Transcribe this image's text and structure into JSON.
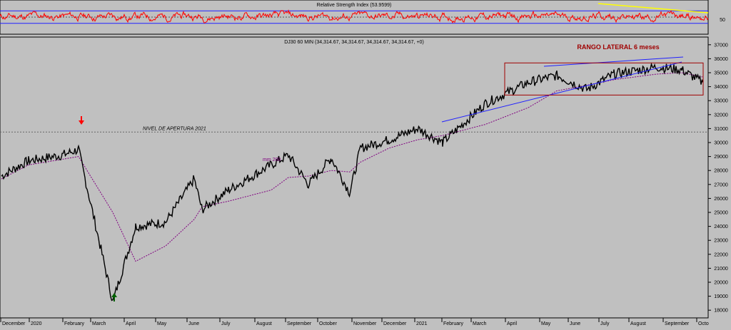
{
  "chart_data": [
    {
      "type": "line",
      "title": "Relative Strength Index (53.9599)",
      "ylabel_ticks": [
        "50"
      ],
      "reference_levels": [
        30,
        50,
        70
      ],
      "series": [
        {
          "name": "",
          "color": "#ff0000",
          "values_range": [
            20,
            80
          ]
        }
      ]
    },
    {
      "type": "line",
      "title": "DJ30 60 MIN (34,314.67, 34,314.67, 34,314.67, 34,314.67, +0)",
      "ylim": [
        17500,
        37500
      ],
      "y_ticks": [
        18000,
        19000,
        20000,
        21000,
        22000,
        23000,
        24000,
        25000,
        26000,
        27000,
        28000,
        29000,
        30000,
        31000,
        32000,
        33000,
        34000,
        35000,
        36000,
        37000
      ],
      "x_ticks": [
        "December",
        "2020",
        "February",
        "March",
        "April",
        "May",
        "June",
        "July",
        "August",
        "September",
        "October",
        "November",
        "December",
        "2021",
        "February",
        "March",
        "April",
        "May",
        "June",
        "July",
        "August",
        "September",
        "Octo"
      ],
      "series": [
        {
          "name": "",
          "color": "#000000",
          "x": [
            "Dec 2019",
            "Jan 2020",
            "Feb 2020 early",
            "Feb 2020 peak",
            "Mar 2020 low",
            "Apr 2020",
            "May 2020",
            "Jun 2020 high",
            "Jun 2020 dip",
            "Jul 2020",
            "Aug 2020",
            "Sep 2020 high",
            "Sep 2020 dip",
            "Oct 2020 high",
            "Oct 2020 low",
            "Nov 2020",
            "Dec 2020",
            "Jan 2021",
            "Feb 2021 dip",
            "Mar 2021",
            "Apr 2021",
            "May 2021",
            "Jun 2021 dip",
            "Jul 2021",
            "Aug 2021",
            "Sep 2021",
            "Oct 2021"
          ],
          "values": [
            27600,
            28700,
            29100,
            29500,
            18600,
            24000,
            24300,
            27400,
            25200,
            26600,
            28400,
            29100,
            27000,
            28900,
            26400,
            29600,
            30200,
            31000,
            30000,
            32800,
            34300,
            34800,
            33800,
            34900,
            35400,
            35200,
            34314
          ]
        },
        {
          "name": "mm 200",
          "color": "#800080",
          "values": [
            27400,
            28400,
            28800,
            29000,
            25000,
            21500,
            22600,
            24500,
            25400,
            25800,
            26600,
            27500,
            27600,
            28000,
            27900,
            28600,
            29600,
            30200,
            30500,
            31300,
            32500,
            33700,
            34100,
            34500,
            34900,
            35000,
            34700
          ]
        }
      ],
      "annotations": [
        {
          "text": "RANGO LATERAL  6 meses",
          "color": "#a00000"
        },
        {
          "text": "NIVEL DE APERTURA 2021",
          "value": 30750
        },
        {
          "text": "mm 200",
          "color": "#800080"
        }
      ],
      "lateral_range": [
        33400,
        35700
      ],
      "arrows": [
        {
          "direction": "down",
          "color": "#ff0000",
          "at": "Feb 2020 peak"
        },
        {
          "direction": "up",
          "color": "#006000",
          "at": "Mar 2020 low"
        }
      ]
    }
  ]
}
